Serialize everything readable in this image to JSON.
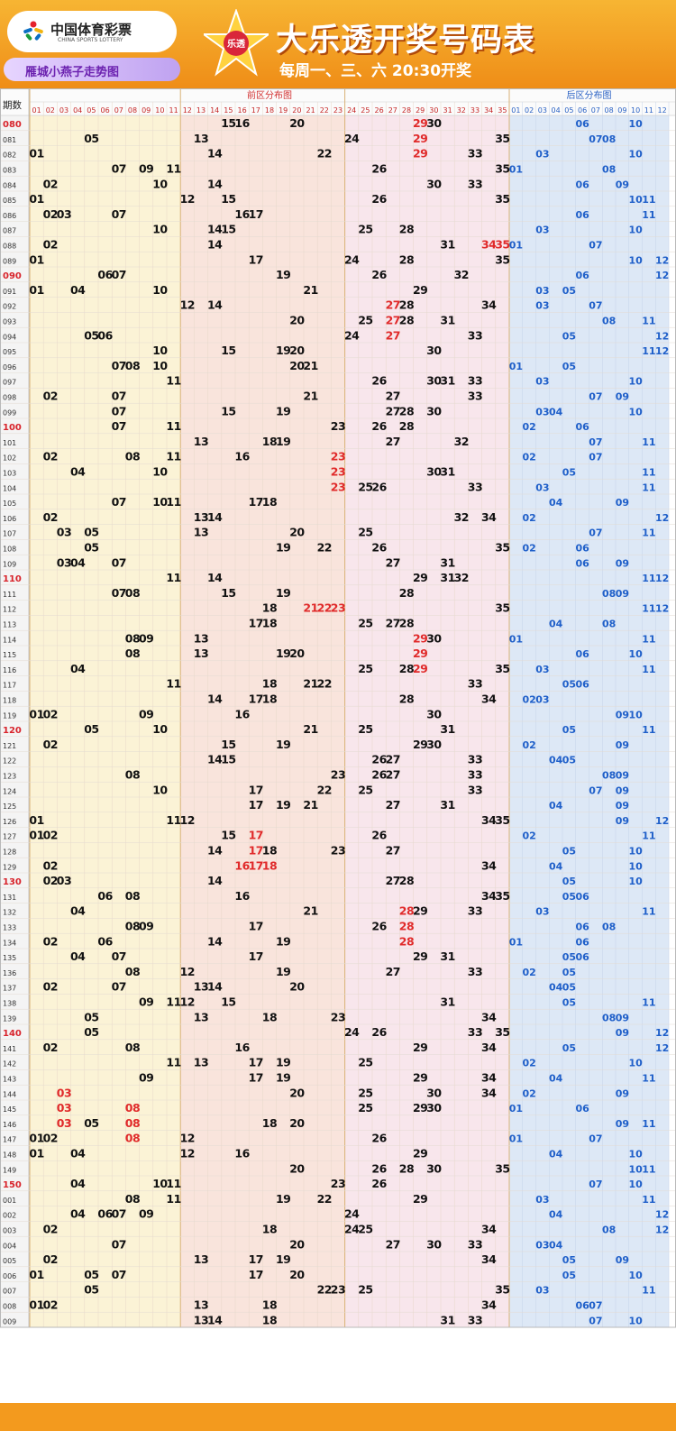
{
  "logo": {
    "cn": "中国体育彩票",
    "en": "CHINA SPORTS LOTTERY"
  },
  "brand": "雁城小燕子走势图",
  "title": "大乐透开奖号码表",
  "subtitle": "每周一、三、六 20:30开奖",
  "star_badge": "乐透",
  "chart": {
    "period_header": "期数",
    "front_title": "前区分布图",
    "back_title": "后区分布图",
    "front_cols": [
      "01",
      "02",
      "03",
      "04",
      "05",
      "06",
      "07",
      "08",
      "09",
      "10",
      "11",
      "12",
      "13",
      "14",
      "15",
      "16",
      "17",
      "18",
      "19",
      "20",
      "21",
      "22",
      "23",
      "24",
      "25",
      "26",
      "27",
      "28",
      "29",
      "30",
      "31",
      "32",
      "33",
      "34",
      "35"
    ],
    "back_cols": [
      "01",
      "02",
      "03",
      "04",
      "05",
      "06",
      "07",
      "08",
      "09",
      "10",
      "11",
      "12"
    ],
    "colors": {
      "front_zone1": "#fbf3d6",
      "front_zone2": "#f9e4dc",
      "front_zone3": "#f8e6ec",
      "back_zone": "#dde8f6",
      "number": "#111111",
      "repeat": "#e02a2a",
      "back_number": "#1f5fc9",
      "period": "#333333",
      "period_key": "#d8242c"
    },
    "rows": [
      {
        "p": "080",
        "f": [
          15,
          16,
          20,
          29,
          30
        ],
        "b": [
          6,
          10
        ],
        "r": [
          29
        ]
      },
      {
        "p": "081",
        "f": [
          5,
          13,
          24,
          29,
          35
        ],
        "b": [
          7,
          8
        ],
        "r": [
          29
        ]
      },
      {
        "p": "082",
        "f": [
          1,
          14,
          22,
          29,
          33
        ],
        "b": [
          3,
          10
        ],
        "r": [
          29
        ]
      },
      {
        "p": "083",
        "f": [
          7,
          9,
          11,
          26,
          35
        ],
        "b": [
          1,
          8
        ],
        "r": []
      },
      {
        "p": "084",
        "f": [
          2,
          10,
          14,
          30,
          33
        ],
        "b": [
          6,
          9
        ],
        "r": []
      },
      {
        "p": "085",
        "f": [
          1,
          12,
          15,
          26,
          35
        ],
        "b": [
          10,
          11
        ],
        "r": []
      },
      {
        "p": "086",
        "f": [
          2,
          3,
          7,
          16,
          17
        ],
        "b": [
          6,
          11
        ],
        "r": []
      },
      {
        "p": "087",
        "f": [
          10,
          14,
          15,
          25,
          28
        ],
        "b": [
          3,
          10
        ],
        "r": []
      },
      {
        "p": "088",
        "f": [
          2,
          14,
          31,
          34,
          35
        ],
        "b": [
          1,
          7
        ],
        "r": [
          34,
          35
        ]
      },
      {
        "p": "089",
        "f": [
          1,
          17,
          24,
          28,
          35
        ],
        "b": [
          10,
          12
        ],
        "r": []
      },
      {
        "p": "090",
        "f": [
          6,
          7,
          19,
          26,
          32
        ],
        "b": [
          6,
          12
        ],
        "r": []
      },
      {
        "p": "091",
        "f": [
          1,
          4,
          10,
          21,
          29
        ],
        "b": [
          3,
          5
        ],
        "r": []
      },
      {
        "p": "092",
        "f": [
          12,
          14,
          27,
          28,
          34
        ],
        "b": [
          3,
          7
        ],
        "r": [
          27
        ]
      },
      {
        "p": "093",
        "f": [
          20,
          25,
          27,
          28,
          31
        ],
        "b": [
          8,
          11
        ],
        "r": [
          27
        ]
      },
      {
        "p": "094",
        "f": [
          5,
          6,
          24,
          27,
          33
        ],
        "b": [
          5,
          12
        ],
        "r": [
          27
        ]
      },
      {
        "p": "095",
        "f": [
          10,
          15,
          19,
          20,
          30
        ],
        "b": [
          11,
          12
        ],
        "r": []
      },
      {
        "p": "096",
        "f": [
          7,
          8,
          10,
          20,
          21
        ],
        "b": [
          1,
          5
        ],
        "r": []
      },
      {
        "p": "097",
        "f": [
          11,
          26,
          30,
          31,
          33
        ],
        "b": [
          3,
          10
        ],
        "r": []
      },
      {
        "p": "098",
        "f": [
          2,
          7,
          21,
          27,
          33
        ],
        "b": [
          7,
          9
        ],
        "r": []
      },
      {
        "p": "099",
        "f": [
          7,
          15,
          19,
          27,
          28,
          30
        ],
        "b": [
          3,
          4,
          10
        ],
        "r": []
      },
      {
        "p": "100",
        "f": [
          7,
          11,
          23,
          26,
          28
        ],
        "b": [
          2,
          6
        ],
        "r": []
      },
      {
        "p": "101",
        "f": [
          13,
          18,
          19,
          27,
          32
        ],
        "b": [
          7,
          11
        ],
        "r": []
      },
      {
        "p": "102",
        "f": [
          2,
          8,
          11,
          16,
          23
        ],
        "b": [
          2,
          7
        ],
        "r": [
          23
        ]
      },
      {
        "p": "103",
        "f": [
          4,
          10,
          23,
          30,
          31
        ],
        "b": [
          5,
          11
        ],
        "r": [
          23
        ]
      },
      {
        "p": "104",
        "f": [
          23,
          25,
          26,
          33
        ],
        "b": [
          3,
          11
        ],
        "r": [
          23
        ]
      },
      {
        "p": "105",
        "f": [
          7,
          10,
          11,
          17,
          18
        ],
        "b": [
          4,
          9
        ],
        "r": []
      },
      {
        "p": "106",
        "f": [
          2,
          13,
          14,
          32,
          34
        ],
        "b": [
          2,
          12
        ],
        "r": []
      },
      {
        "p": "107",
        "f": [
          3,
          5,
          13,
          20,
          25
        ],
        "b": [
          7,
          11
        ],
        "r": []
      },
      {
        "p": "108",
        "f": [
          5,
          19,
          22,
          26,
          35
        ],
        "b": [
          2,
          6
        ],
        "r": []
      },
      {
        "p": "109",
        "f": [
          3,
          4,
          7,
          27,
          31
        ],
        "b": [
          6,
          9
        ],
        "r": []
      },
      {
        "p": "110",
        "f": [
          11,
          14,
          29,
          31,
          32
        ],
        "b": [
          11,
          12
        ],
        "r": []
      },
      {
        "p": "111",
        "f": [
          7,
          8,
          15,
          19,
          28
        ],
        "b": [
          8,
          9
        ],
        "r": []
      },
      {
        "p": "112",
        "f": [
          18,
          21,
          22,
          23,
          35
        ],
        "b": [
          11,
          12
        ],
        "r": [
          21,
          22,
          23
        ]
      },
      {
        "p": "113",
        "f": [
          17,
          18,
          25,
          27,
          28
        ],
        "b": [
          4,
          8
        ],
        "r": []
      },
      {
        "p": "114",
        "f": [
          8,
          9,
          13,
          29,
          30
        ],
        "b": [
          1,
          11
        ],
        "r": [
          29
        ]
      },
      {
        "p": "115",
        "f": [
          8,
          13,
          19,
          20,
          29
        ],
        "b": [
          6,
          10
        ],
        "r": [
          29
        ]
      },
      {
        "p": "116",
        "f": [
          4,
          25,
          28,
          29,
          35
        ],
        "b": [
          3,
          11
        ],
        "r": [
          29
        ]
      },
      {
        "p": "117",
        "f": [
          11,
          18,
          21,
          22,
          33
        ],
        "b": [
          5,
          6
        ],
        "r": []
      },
      {
        "p": "118",
        "f": [
          14,
          17,
          18,
          28,
          34
        ],
        "b": [
          2,
          3
        ],
        "r": []
      },
      {
        "p": "119",
        "f": [
          1,
          2,
          9,
          16,
          30
        ],
        "b": [
          9,
          10
        ],
        "r": []
      },
      {
        "p": "120",
        "f": [
          5,
          10,
          21,
          25,
          31
        ],
        "b": [
          5,
          11
        ],
        "r": []
      },
      {
        "p": "121",
        "f": [
          2,
          15,
          19,
          29,
          30
        ],
        "b": [
          2,
          9
        ],
        "r": []
      },
      {
        "p": "122",
        "f": [
          14,
          15,
          26,
          27,
          33
        ],
        "b": [
          4,
          5
        ],
        "r": []
      },
      {
        "p": "123",
        "f": [
          8,
          23,
          26,
          27,
          33
        ],
        "b": [
          8,
          9
        ],
        "r": []
      },
      {
        "p": "124",
        "f": [
          10,
          17,
          22,
          25,
          33
        ],
        "b": [
          7,
          9
        ],
        "r": []
      },
      {
        "p": "125",
        "f": [
          17,
          19,
          21,
          27,
          31
        ],
        "b": [
          4,
          9
        ],
        "r": []
      },
      {
        "p": "126",
        "f": [
          1,
          11,
          12,
          34,
          35
        ],
        "b": [
          9,
          12
        ],
        "r": []
      },
      {
        "p": "127",
        "f": [
          1,
          2,
          15,
          17,
          26
        ],
        "b": [
          2,
          11
        ],
        "r": [
          17
        ]
      },
      {
        "p": "128",
        "f": [
          14,
          17,
          18,
          23,
          27
        ],
        "b": [
          5,
          10
        ],
        "r": [
          17
        ]
      },
      {
        "p": "129",
        "f": [
          2,
          16,
          17,
          18,
          34
        ],
        "b": [
          4,
          10
        ],
        "r": [
          16,
          17,
          18
        ]
      },
      {
        "p": "130",
        "f": [
          2,
          3,
          14,
          27,
          28
        ],
        "b": [
          5,
          10
        ],
        "r": []
      },
      {
        "p": "131",
        "f": [
          6,
          8,
          16,
          34,
          35
        ],
        "b": [
          5,
          6
        ],
        "r": []
      },
      {
        "p": "132",
        "f": [
          4,
          21,
          28,
          29,
          33
        ],
        "b": [
          3,
          11
        ],
        "r": [
          28
        ]
      },
      {
        "p": "133",
        "f": [
          8,
          9,
          17,
          26,
          28
        ],
        "b": [
          6,
          8
        ],
        "r": [
          28
        ]
      },
      {
        "p": "134",
        "f": [
          2,
          6,
          14,
          19,
          28
        ],
        "b": [
          1,
          6
        ],
        "r": [
          28
        ]
      },
      {
        "p": "135",
        "f": [
          4,
          7,
          17,
          29,
          31
        ],
        "b": [
          5,
          6
        ],
        "r": []
      },
      {
        "p": "136",
        "f": [
          8,
          12,
          19,
          27,
          33
        ],
        "b": [
          2,
          5
        ],
        "r": []
      },
      {
        "p": "137",
        "f": [
          2,
          7,
          13,
          14,
          20
        ],
        "b": [
          4,
          5
        ],
        "r": []
      },
      {
        "p": "138",
        "f": [
          9,
          11,
          12,
          15,
          31
        ],
        "b": [
          5,
          11
        ],
        "r": []
      },
      {
        "p": "139",
        "f": [
          5,
          13,
          18,
          23,
          34
        ],
        "b": [
          8,
          9
        ],
        "r": []
      },
      {
        "p": "140",
        "f": [
          5,
          24,
          26,
          33,
          35
        ],
        "b": [
          9,
          12
        ],
        "r": []
      },
      {
        "p": "141",
        "f": [
          2,
          8,
          16,
          29,
          34
        ],
        "b": [
          5,
          12
        ],
        "r": []
      },
      {
        "p": "142",
        "f": [
          11,
          13,
          17,
          19,
          25
        ],
        "b": [
          2,
          10
        ],
        "r": []
      },
      {
        "p": "143",
        "f": [
          9,
          17,
          19,
          29,
          34
        ],
        "b": [
          4,
          11
        ],
        "r": []
      },
      {
        "p": "144",
        "f": [
          3,
          20,
          25,
          30,
          34
        ],
        "b": [
          2,
          9
        ],
        "r": [
          3
        ]
      },
      {
        "p": "145",
        "f": [
          3,
          8,
          25,
          29,
          30
        ],
        "b": [
          1,
          6
        ],
        "r": [
          3,
          8
        ]
      },
      {
        "p": "146",
        "f": [
          3,
          5,
          8,
          18,
          20
        ],
        "b": [
          9,
          11
        ],
        "r": [
          3,
          8
        ]
      },
      {
        "p": "147",
        "f": [
          1,
          2,
          8,
          12,
          26
        ],
        "b": [
          1,
          7
        ],
        "r": [
          8
        ]
      },
      {
        "p": "148",
        "f": [
          1,
          4,
          12,
          16,
          29
        ],
        "b": [
          4,
          10
        ],
        "r": []
      },
      {
        "p": "149",
        "f": [
          20,
          26,
          28,
          30,
          35
        ],
        "b": [
          10,
          11
        ],
        "r": []
      },
      {
        "p": "150",
        "f": [
          4,
          10,
          11,
          23,
          26
        ],
        "b": [
          7,
          10
        ],
        "r": []
      },
      {
        "p": "001",
        "f": [
          8,
          11,
          19,
          22,
          29
        ],
        "b": [
          3,
          11
        ],
        "r": []
      },
      {
        "p": "002",
        "f": [
          4,
          6,
          7,
          9,
          24
        ],
        "b": [
          4,
          12
        ],
        "r": []
      },
      {
        "p": "003",
        "f": [
          2,
          18,
          24,
          25,
          34
        ],
        "b": [
          8,
          12
        ],
        "r": []
      },
      {
        "p": "004",
        "f": [
          7,
          20,
          27,
          30,
          33
        ],
        "b": [
          3,
          4
        ],
        "r": []
      },
      {
        "p": "005",
        "f": [
          2,
          13,
          17,
          19,
          34
        ],
        "b": [
          5,
          9
        ],
        "r": []
      },
      {
        "p": "006",
        "f": [
          1,
          5,
          7,
          17,
          20
        ],
        "b": [
          5,
          10
        ],
        "r": []
      },
      {
        "p": "007",
        "f": [
          5,
          22,
          23,
          25,
          35
        ],
        "b": [
          3,
          11
        ],
        "r": []
      },
      {
        "p": "008",
        "f": [
          1,
          2,
          13,
          18,
          34
        ],
        "b": [
          6,
          7
        ],
        "r": []
      },
      {
        "p": "009",
        "f": [
          13,
          14,
          18,
          31,
          33
        ],
        "b": [
          7,
          10
        ],
        "r": []
      }
    ]
  }
}
